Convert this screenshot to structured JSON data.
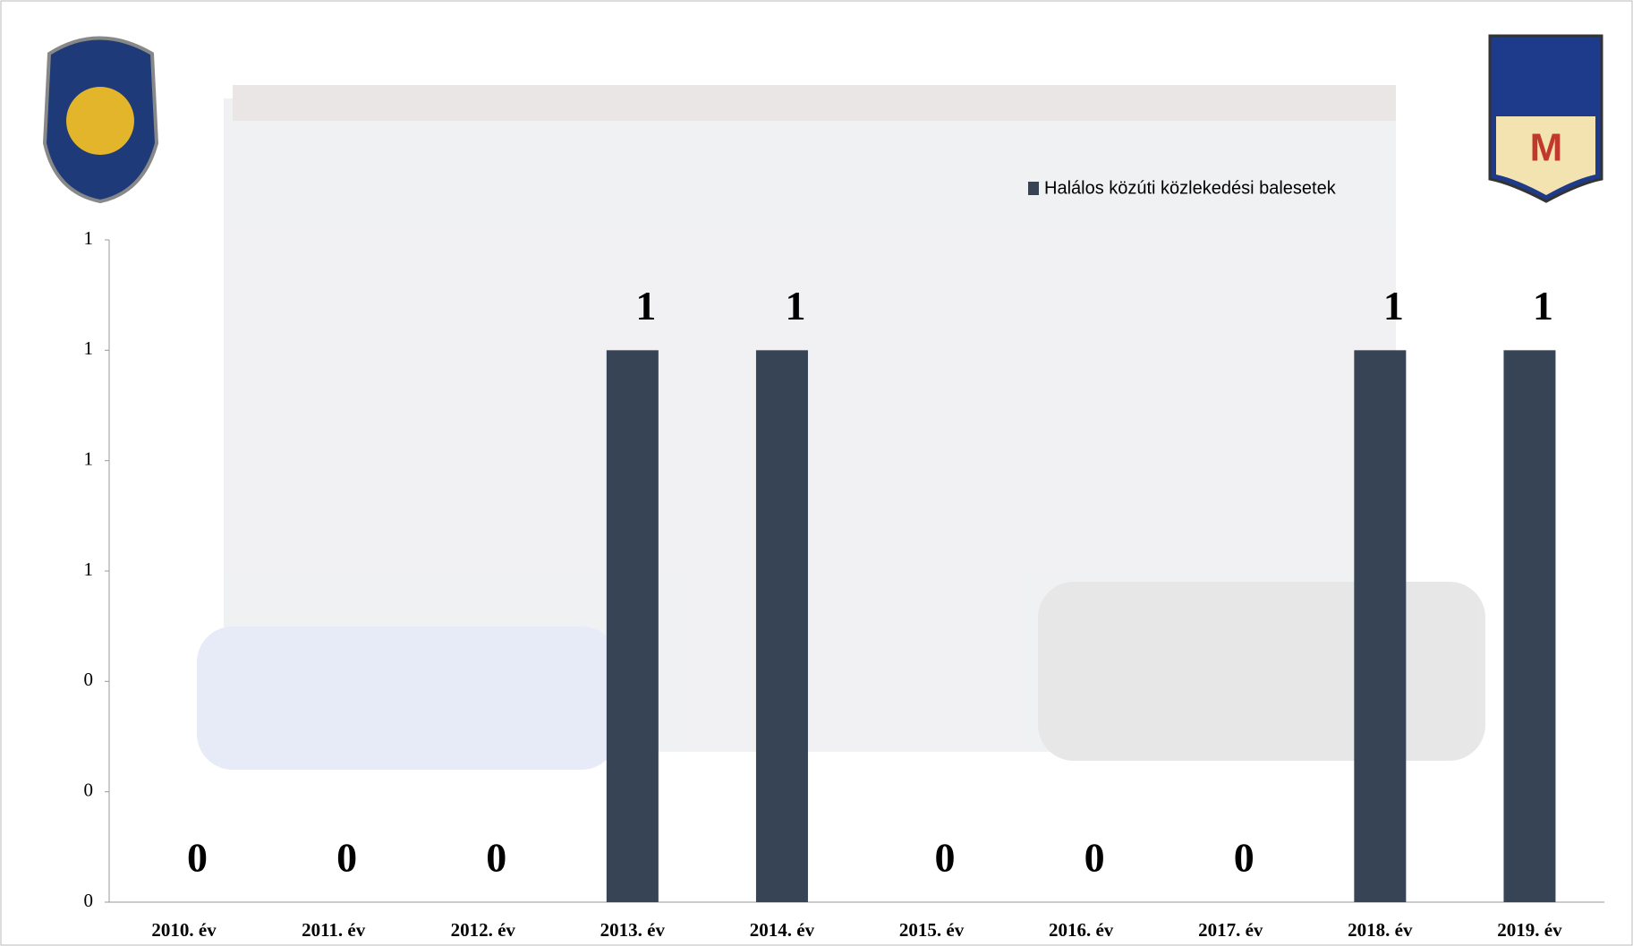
{
  "chart_data": {
    "type": "bar",
    "legend": "Halálos közúti közlekedési balesetek",
    "categories": [
      "2010. év",
      "2011. év",
      "2012. év",
      "2013. év",
      "2014. év",
      "2015. év",
      "2016. év",
      "2017. év",
      "2018. év",
      "2019. év"
    ],
    "values": [
      0,
      0,
      0,
      1,
      1,
      0,
      0,
      0,
      1,
      1
    ],
    "color": "#374455",
    "ylim": [
      0,
      1.2
    ],
    "yticks": [
      {
        "value": 0,
        "label": "0"
      },
      {
        "value": 0.2,
        "label": "0"
      },
      {
        "value": 0.4,
        "label": "0"
      },
      {
        "value": 0.6,
        "label": "1"
      },
      {
        "value": 0.8,
        "label": "1"
      },
      {
        "value": 1.0,
        "label": "1"
      },
      {
        "value": 1.2,
        "label": "1"
      }
    ],
    "grid": false
  }
}
